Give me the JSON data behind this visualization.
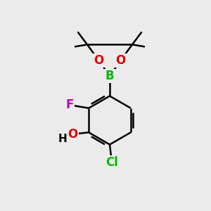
{
  "background_color": "#ebebeb",
  "bond_color": "#000000",
  "bond_width": 1.8,
  "atoms": {
    "B": {
      "color": "#00bb00",
      "fontsize": 12
    },
    "O": {
      "color": "#dd0000",
      "fontsize": 12
    },
    "F": {
      "color": "#bb00bb",
      "fontsize": 12
    },
    "OH_O": {
      "color": "#dd0000",
      "fontsize": 12
    },
    "OH_H": {
      "color": "#000000",
      "fontsize": 12
    },
    "Cl": {
      "color": "#00bb00",
      "fontsize": 12
    }
  },
  "figsize": [
    3.0,
    3.0
  ],
  "dpi": 100,
  "xlim": [
    0,
    10
  ],
  "ylim": [
    0,
    10
  ]
}
